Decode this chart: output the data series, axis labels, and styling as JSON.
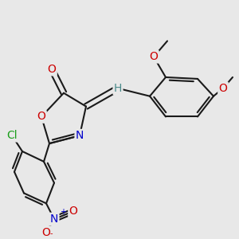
{
  "bg_color": "#e8e8e8",
  "bond_color": "#1a1a1a",
  "bond_width": 1.5,
  "atom_colors": {
    "O": "#cc0000",
    "N": "#0000cc",
    "Cl": "#1a9e1a",
    "H": "#4a8a8a",
    "C": "#1a1a1a"
  },
  "fontsize": 10,
  "small_fontsize": 8
}
